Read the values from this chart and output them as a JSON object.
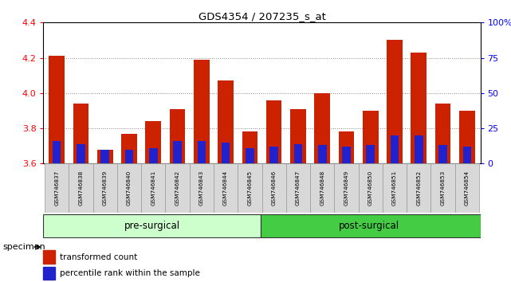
{
  "title": "GDS4354 / 207235_s_at",
  "samples": [
    "GSM746837",
    "GSM746838",
    "GSM746839",
    "GSM746840",
    "GSM746841",
    "GSM746842",
    "GSM746843",
    "GSM746844",
    "GSM746845",
    "GSM746846",
    "GSM746847",
    "GSM746848",
    "GSM746849",
    "GSM746850",
    "GSM746851",
    "GSM746852",
    "GSM746853",
    "GSM746854"
  ],
  "transformed_count": [
    4.21,
    3.94,
    3.68,
    3.77,
    3.84,
    3.91,
    4.19,
    4.07,
    3.78,
    3.96,
    3.91,
    4.0,
    3.78,
    3.9,
    4.3,
    4.23,
    3.94,
    3.9
  ],
  "percentile_rank_pct": [
    16,
    14,
    10,
    10,
    11,
    16,
    16,
    15,
    11,
    12,
    14,
    13,
    12,
    13,
    20,
    20,
    13,
    12
  ],
  "ylim": [
    3.6,
    4.4
  ],
  "yticks_left": [
    3.6,
    3.8,
    4.0,
    4.2,
    4.4
  ],
  "yticks_right": [
    0,
    25,
    50,
    75,
    100
  ],
  "bar_color_red": "#cc2200",
  "bar_color_blue": "#2222cc",
  "pre_surgical_count": 9,
  "group_labels": [
    "pre-surgical",
    "post-surgical"
  ],
  "group_color_light": "#ccffcc",
  "group_color_dark": "#44cc44",
  "legend_red": "transformed count",
  "legend_blue": "percentile rank within the sample",
  "bar_width": 0.65,
  "blue_bar_width": 0.35
}
